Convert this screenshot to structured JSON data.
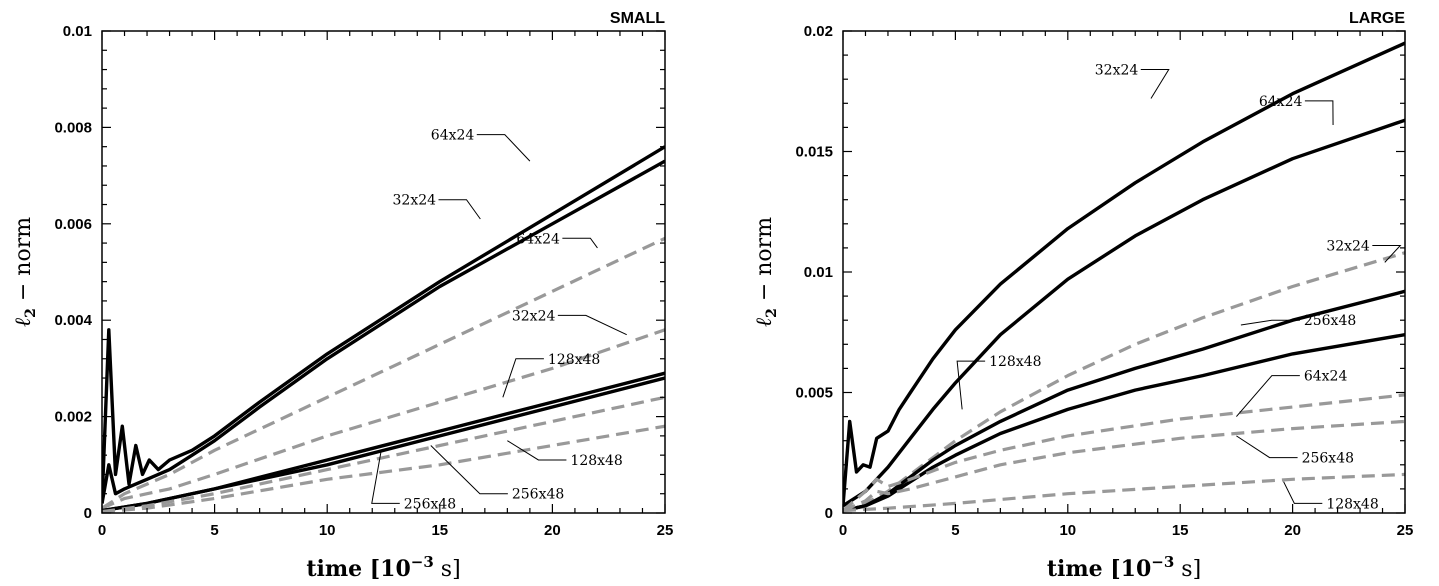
{
  "chart_data": [
    {
      "type": "line",
      "title": "SMALL",
      "xlabel": "time [10",
      "xlabel_exp": "−3",
      "xlabel_unit": " s]",
      "ylabel": "ℓ",
      "ylabel_sub": "2",
      "ylabel_rest": " − norm",
      "xlim": [
        0,
        25
      ],
      "ylim": [
        0,
        0.01
      ],
      "xticks": [
        0,
        5,
        10,
        15,
        20,
        25
      ],
      "xtick_labels": [
        "0",
        "5",
        "10",
        "15",
        "20",
        "25"
      ],
      "yticks": [
        0,
        0.002,
        0.004,
        0.006,
        0.008,
        0.01
      ],
      "ytick_labels": [
        "0",
        "0.002",
        "0.004",
        "0.006",
        "0.008",
        "0.01"
      ],
      "series": [
        {
          "name": "64x24",
          "style": "solid",
          "color": "#000000",
          "points": [
            [
              0,
              0.0002
            ],
            [
              0.3,
              0.0038
            ],
            [
              0.6,
              0.0008
            ],
            [
              0.9,
              0.0018
            ],
            [
              1.2,
              0.0006
            ],
            [
              1.5,
              0.0014
            ],
            [
              1.8,
              0.0008
            ],
            [
              2.1,
              0.0011
            ],
            [
              2.5,
              0.0009
            ],
            [
              3,
              0.0011
            ],
            [
              4,
              0.0013
            ],
            [
              5,
              0.0016
            ],
            [
              7,
              0.0023
            ],
            [
              10,
              0.0033
            ],
            [
              15,
              0.0048
            ],
            [
              20,
              0.0062
            ],
            [
              25,
              0.0076
            ]
          ]
        },
        {
          "name": "32x24",
          "style": "solid",
          "color": "#000000",
          "points": [
            [
              0,
              0.0002
            ],
            [
              0.3,
              0.001
            ],
            [
              0.6,
              0.0004
            ],
            [
              1,
              0.0005
            ],
            [
              1.5,
              0.0006
            ],
            [
              2,
              0.0007
            ],
            [
              3,
              0.0009
            ],
            [
              4,
              0.0012
            ],
            [
              5,
              0.0015
            ],
            [
              7,
              0.0022
            ],
            [
              10,
              0.0032
            ],
            [
              15,
              0.0047
            ],
            [
              20,
              0.006
            ],
            [
              25,
              0.0073
            ]
          ]
        },
        {
          "name": "64x24",
          "style": "dashed",
          "color": "#999999",
          "points": [
            [
              0,
              0.0001
            ],
            [
              1,
              0.0004
            ],
            [
              2,
              0.0006
            ],
            [
              3,
              0.0008
            ],
            [
              5,
              0.0013
            ],
            [
              10,
              0.0024
            ],
            [
              15,
              0.0035
            ],
            [
              20,
              0.0046
            ],
            [
              25,
              0.0057
            ]
          ]
        },
        {
          "name": "32x24",
          "style": "dashed",
          "color": "#999999",
          "points": [
            [
              0,
              0.0001
            ],
            [
              1,
              0.0003
            ],
            [
              2,
              0.0004
            ],
            [
              3,
              0.0005
            ],
            [
              5,
              0.0008
            ],
            [
              10,
              0.0016
            ],
            [
              15,
              0.0023
            ],
            [
              20,
              0.003
            ],
            [
              25,
              0.0038
            ]
          ]
        },
        {
          "name": "128x48",
          "style": "solid",
          "color": "#000000",
          "points": [
            [
              0,
              5e-05
            ],
            [
              2,
              0.0002
            ],
            [
              5,
              0.0005
            ],
            [
              10,
              0.0011
            ],
            [
              15,
              0.0017
            ],
            [
              20,
              0.0023
            ],
            [
              25,
              0.0029
            ]
          ]
        },
        {
          "name": "256x48",
          "style": "solid",
          "color": "#000000",
          "points": [
            [
              0,
              5e-05
            ],
            [
              2,
              0.0002
            ],
            [
              5,
              0.0005
            ],
            [
              10,
              0.001
            ],
            [
              15,
              0.0016
            ],
            [
              20,
              0.0022
            ],
            [
              25,
              0.0028
            ]
          ]
        },
        {
          "name": "256x48",
          "style": "dashed",
          "color": "#999999",
          "points": [
            [
              0,
              3e-05
            ],
            [
              2,
              0.00015
            ],
            [
              5,
              0.0004
            ],
            [
              10,
              0.0009
            ],
            [
              15,
              0.0014
            ],
            [
              20,
              0.0019
            ],
            [
              25,
              0.0024
            ]
          ]
        },
        {
          "name": "128x48",
          "style": "dashed",
          "color": "#999999",
          "points": [
            [
              0,
              3e-05
            ],
            [
              2,
              0.0001
            ],
            [
              5,
              0.0003
            ],
            [
              10,
              0.0007
            ],
            [
              15,
              0.001
            ],
            [
              20,
              0.0014
            ],
            [
              25,
              0.0018
            ]
          ]
        }
      ],
      "annotations": [
        {
          "text": "64x24",
          "x": 19.0,
          "y": 0.0073,
          "lx": 14.6,
          "ly": 0.00785
        },
        {
          "text": "32x24",
          "x": 16.8,
          "y": 0.0061,
          "lx": 12.9,
          "ly": 0.0065
        },
        {
          "text": "64x24",
          "x": 22.0,
          "y": 0.0055,
          "lx": 18.4,
          "ly": 0.0057
        },
        {
          "text": "32x24",
          "x": 23.3,
          "y": 0.0037,
          "lx": 18.2,
          "ly": 0.0041
        },
        {
          "text": "128x48",
          "x": 17.8,
          "y": 0.0024,
          "lx": 19.8,
          "ly": 0.0032
        },
        {
          "text": "128x48",
          "x": 18.0,
          "y": 0.0015,
          "lx": 20.8,
          "ly": 0.0011
        },
        {
          "text": "256x48",
          "x": 14.6,
          "y": 0.0014,
          "lx": 18.2,
          "ly": 0.0004
        },
        {
          "text": "256x48",
          "x": 12.4,
          "y": 0.0013,
          "lx": 13.4,
          "ly": 0.0002
        }
      ]
    },
    {
      "type": "line",
      "title": "LARGE",
      "xlabel": "time [10",
      "xlabel_exp": "−3",
      "xlabel_unit": " s]",
      "ylabel": "ℓ",
      "ylabel_sub": "2",
      "ylabel_rest": " − norm",
      "xlim": [
        0,
        25
      ],
      "ylim": [
        0,
        0.02
      ],
      "xticks": [
        0,
        5,
        10,
        15,
        20,
        25
      ],
      "xtick_labels": [
        "0",
        "5",
        "10",
        "15",
        "20",
        "25"
      ],
      "yticks": [
        0,
        0.005,
        0.01,
        0.015,
        0.02
      ],
      "ytick_labels": [
        "0",
        "0.005",
        "0.01",
        "0.015",
        "0.02"
      ],
      "series": [
        {
          "name": "32x24",
          "style": "solid",
          "color": "#000000",
          "points": [
            [
              0,
              0.0003
            ],
            [
              0.3,
              0.0038
            ],
            [
              0.6,
              0.0017
            ],
            [
              0.9,
              0.002
            ],
            [
              1.2,
              0.0019
            ],
            [
              1.5,
              0.0031
            ],
            [
              2,
              0.0034
            ],
            [
              2.5,
              0.0043
            ],
            [
              3,
              0.005
            ],
            [
              4,
              0.0064
            ],
            [
              5,
              0.0076
            ],
            [
              7,
              0.0095
            ],
            [
              10,
              0.0118
            ],
            [
              13,
              0.0137
            ],
            [
              16,
              0.0154
            ],
            [
              20,
              0.0174
            ],
            [
              25,
              0.0195
            ]
          ]
        },
        {
          "name": "64x24",
          "style": "solid",
          "color": "#000000",
          "points": [
            [
              0,
              0.0003
            ],
            [
              1,
              0.0009
            ],
            [
              2,
              0.0019
            ],
            [
              3,
              0.0031
            ],
            [
              4,
              0.0043
            ],
            [
              5,
              0.0054
            ],
            [
              7,
              0.0074
            ],
            [
              10,
              0.0097
            ],
            [
              13,
              0.0115
            ],
            [
              16,
              0.013
            ],
            [
              20,
              0.0147
            ],
            [
              25,
              0.0163
            ]
          ]
        },
        {
          "name": "32x24",
          "style": "dashed",
          "color": "#999999",
          "points": [
            [
              0,
              0.0001
            ],
            [
              1,
              0.0004
            ],
            [
              2,
              0.0009
            ],
            [
              3,
              0.0016
            ],
            [
              4,
              0.0023
            ],
            [
              5,
              0.003
            ],
            [
              7,
              0.0042
            ],
            [
              10,
              0.0057
            ],
            [
              13,
              0.007
            ],
            [
              16,
              0.0081
            ],
            [
              20,
              0.0094
            ],
            [
              25,
              0.0108
            ]
          ]
        },
        {
          "name": "256x48",
          "style": "solid",
          "color": "#000000",
          "points": [
            [
              0,
              0.0001
            ],
            [
              1,
              0.0003
            ],
            [
              2,
              0.0008
            ],
            [
              3,
              0.0015
            ],
            [
              4,
              0.0022
            ],
            [
              5,
              0.0028
            ],
            [
              7,
              0.0038
            ],
            [
              10,
              0.0051
            ],
            [
              13,
              0.006
            ],
            [
              16,
              0.0068
            ],
            [
              20,
              0.008
            ],
            [
              25,
              0.0092
            ]
          ]
        },
        {
          "name": "128x48",
          "style": "solid",
          "color": "#000000",
          "points": [
            [
              0,
              0.0001
            ],
            [
              1,
              0.0003
            ],
            [
              2,
              0.0007
            ],
            [
              3,
              0.0013
            ],
            [
              4,
              0.0019
            ],
            [
              5,
              0.0024
            ],
            [
              7,
              0.0033
            ],
            [
              10,
              0.0043
            ],
            [
              13,
              0.0051
            ],
            [
              16,
              0.0057
            ],
            [
              20,
              0.0066
            ],
            [
              25,
              0.0074
            ]
          ]
        },
        {
          "name": "64x24",
          "style": "dashed",
          "color": "#999999",
          "points": [
            [
              0,
              0.0001
            ],
            [
              1,
              0.0009
            ],
            [
              1.5,
              0.0014
            ],
            [
              2,
              0.0011
            ],
            [
              3,
              0.0014
            ],
            [
              5,
              0.0021
            ],
            [
              7,
              0.0026
            ],
            [
              10,
              0.0032
            ],
            [
              15,
              0.0039
            ],
            [
              20,
              0.0044
            ],
            [
              25,
              0.0049
            ]
          ]
        },
        {
          "name": "256x48",
          "style": "dashed",
          "color": "#999999",
          "points": [
            [
              0,
              0.0001
            ],
            [
              1,
              0.0005
            ],
            [
              1.5,
              0.0009
            ],
            [
              2,
              0.0008
            ],
            [
              3,
              0.001
            ],
            [
              5,
              0.0015
            ],
            [
              7,
              0.002
            ],
            [
              10,
              0.0025
            ],
            [
              15,
              0.0031
            ],
            [
              20,
              0.0035
            ],
            [
              25,
              0.0038
            ]
          ]
        },
        {
          "name": "128x48",
          "style": "dashed",
          "color": "#999999",
          "points": [
            [
              0,
              0.0001
            ],
            [
              2,
              0.0002
            ],
            [
              5,
              0.0004
            ],
            [
              10,
              0.0008
            ],
            [
              15,
              0.0011
            ],
            [
              20,
              0.0014
            ],
            [
              25,
              0.0016
            ]
          ]
        }
      ],
      "annotations": [
        {
          "text": "32x24",
          "x": 13.7,
          "y": 0.0172,
          "lx": 11.2,
          "ly": 0.0184
        },
        {
          "text": "64x24",
          "x": 21.8,
          "y": 0.0161,
          "lx": 18.5,
          "ly": 0.0171
        },
        {
          "text": "32x24",
          "x": 24.1,
          "y": 0.0104,
          "lx": 21.5,
          "ly": 0.0111
        },
        {
          "text": "256x48",
          "x": 17.7,
          "y": 0.0078,
          "lx": 20.5,
          "ly": 0.008
        },
        {
          "text": "128x48",
          "x": 5.3,
          "y": 0.0043,
          "lx": 6.5,
          "ly": 0.0063
        },
        {
          "text": "64x24",
          "x": 17.5,
          "y": 0.004,
          "lx": 20.5,
          "ly": 0.0057
        },
        {
          "text": "256x48",
          "x": 17.5,
          "y": 0.0032,
          "lx": 20.4,
          "ly": 0.0023
        },
        {
          "text": "128x48",
          "x": 19.6,
          "y": 0.0013,
          "lx": 21.5,
          "ly": 0.0004
        }
      ]
    }
  ]
}
